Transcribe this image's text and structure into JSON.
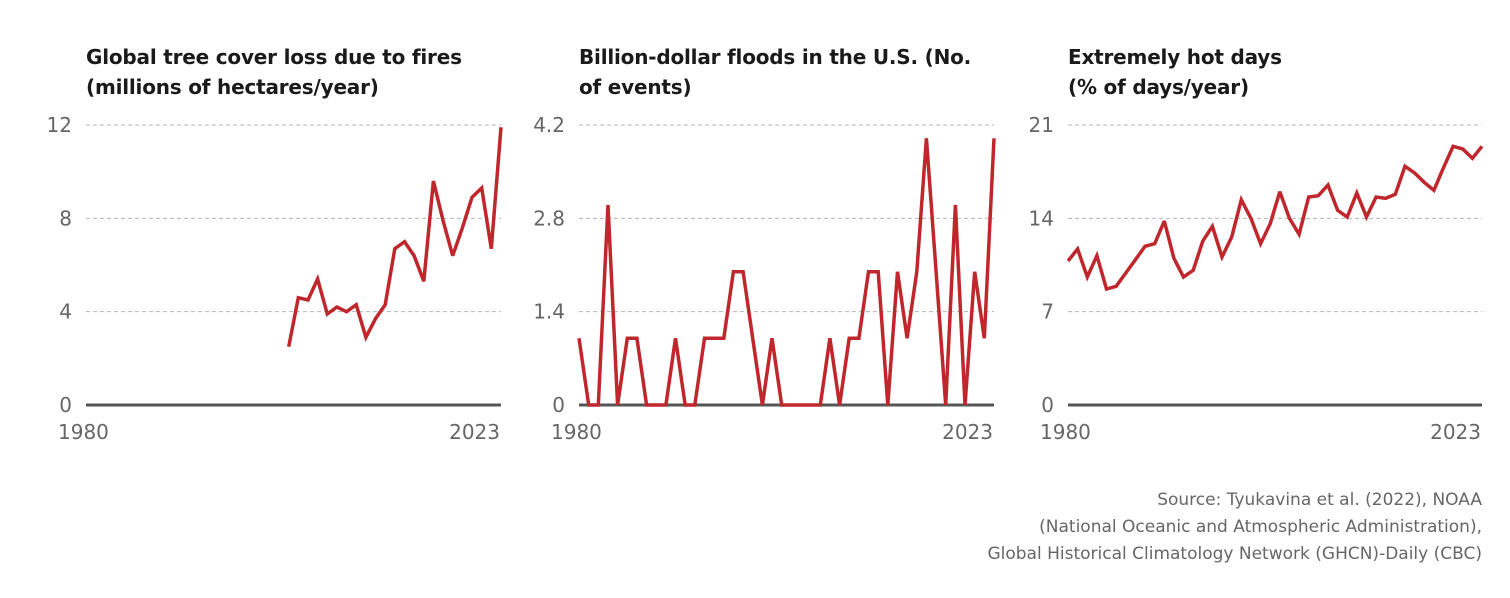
{
  "chart_data": [
    {
      "type": "line",
      "title": "Global tree cover loss due to fires (millions of hectares/year)",
      "title_lines": [
        "Global tree cover loss due to fires",
        "(millions of hectares/year)"
      ],
      "x_tick_labels": [
        "1980",
        "2023"
      ],
      "y_tick_labels": [
        "0",
        "4",
        "8",
        "12"
      ],
      "xlim": [
        1980,
        2023
      ],
      "ylim": [
        0,
        12
      ],
      "grid": "horizontal dashed",
      "color": "#c0272d",
      "x": [
        2001,
        2002,
        2003,
        2004,
        2005,
        2006,
        2007,
        2008,
        2009,
        2010,
        2011,
        2012,
        2013,
        2014,
        2015,
        2016,
        2017,
        2018,
        2019,
        2020,
        2021,
        2022,
        2023
      ],
      "values": [
        2.5,
        4.6,
        4.5,
        5.4,
        3.9,
        4.2,
        4.0,
        4.3,
        2.9,
        3.7,
        4.3,
        6.7,
        7.0,
        6.4,
        5.3,
        9.6,
        7.9,
        6.4,
        7.6,
        8.9,
        9.3,
        6.7,
        11.9
      ]
    },
    {
      "type": "line",
      "title": "Billion-dollar floods in the U.S. (No. of events)",
      "title_lines": [
        "Billion-dollar floods in the U.S. (No.",
        "of events)"
      ],
      "x_tick_labels": [
        "1980",
        "2023"
      ],
      "y_tick_labels": [
        "0",
        "1.4",
        "2.8",
        "4.2"
      ],
      "xlim": [
        1980,
        2023
      ],
      "ylim": [
        0,
        4.2
      ],
      "grid": "horizontal dashed",
      "color": "#c0272d",
      "x": [
        1980,
        1981,
        1982,
        1983,
        1984,
        1985,
        1986,
        1987,
        1988,
        1989,
        1990,
        1991,
        1992,
        1993,
        1994,
        1995,
        1996,
        1997,
        1998,
        1999,
        2000,
        2001,
        2002,
        2003,
        2004,
        2005,
        2006,
        2007,
        2008,
        2009,
        2010,
        2011,
        2012,
        2013,
        2014,
        2015,
        2016,
        2017,
        2018,
        2019,
        2020,
        2021,
        2022,
        2023
      ],
      "values": [
        1,
        0,
        0,
        3,
        0,
        1,
        1,
        0,
        0,
        0,
        1,
        0,
        0,
        1,
        1,
        1,
        2,
        2,
        1,
        0,
        1,
        0,
        0,
        0,
        0,
        0,
        1,
        0,
        1,
        1,
        2,
        2,
        0,
        2,
        1,
        2,
        4,
        2,
        0,
        3,
        0,
        2,
        1,
        4
      ]
    },
    {
      "type": "line",
      "title": "Extremely hot days (% of days/year)",
      "title_lines": [
        "Extremely hot days",
        "(% of days/year)"
      ],
      "x_tick_labels": [
        "1980",
        "2023"
      ],
      "y_tick_labels": [
        "0",
        "7",
        "14",
        "21"
      ],
      "xlim": [
        1980,
        2023
      ],
      "ylim": [
        0,
        21
      ],
      "grid": "horizontal dashed",
      "color": "#c0272d",
      "x": [
        1980,
        1981,
        1982,
        1983,
        1984,
        1985,
        1986,
        1987,
        1988,
        1989,
        1990,
        1991,
        1992,
        1993,
        1994,
        1995,
        1996,
        1997,
        1998,
        1999,
        2000,
        2001,
        2002,
        2003,
        2004,
        2005,
        2006,
        2007,
        2008,
        2009,
        2010,
        2011,
        2012,
        2013,
        2014,
        2015,
        2016,
        2017,
        2018,
        2019,
        2020,
        2021,
        2022,
        2023
      ],
      "values": [
        10.8,
        11.7,
        9.6,
        11.2,
        8.7,
        8.9,
        9.9,
        10.9,
        11.9,
        12.1,
        13.8,
        11.0,
        9.6,
        10.1,
        12.3,
        13.4,
        11.1,
        12.6,
        15.4,
        14.0,
        12.1,
        13.6,
        16.0,
        14.0,
        12.8,
        15.6,
        15.7,
        16.5,
        14.6,
        14.1,
        15.9,
        14.1,
        15.6,
        15.5,
        15.8,
        17.9,
        17.4,
        16.7,
        16.1,
        17.8,
        19.4,
        19.2,
        18.5,
        19.4
      ]
    }
  ],
  "source": {
    "lines": [
      "Source: Tyukavina et al. (2022), NOAA",
      "(National Oceanic and Atmospheric Administration),",
      "Global Historical Climatology Network (GHCN)-Daily (CBC)"
    ]
  }
}
